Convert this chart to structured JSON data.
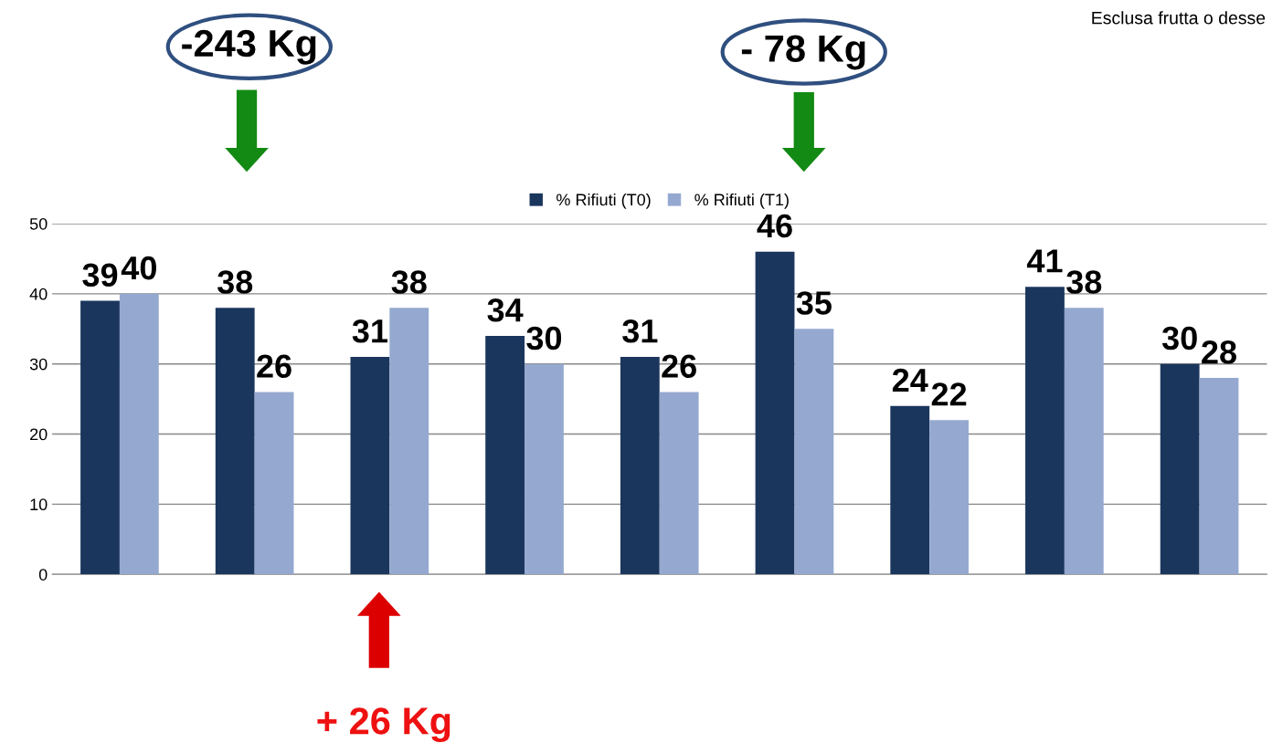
{
  "chart_data": {
    "type": "bar",
    "categories": [
      null,
      null,
      null,
      null,
      null,
      null,
      null,
      null,
      null
    ],
    "series": [
      {
        "name": "% Rifiuti (T0)",
        "color": "#1b365d",
        "values": [
          39,
          38,
          31,
          34,
          31,
          46,
          24,
          41,
          30
        ]
      },
      {
        "name": "% Rifiuti (T1)",
        "color": "#95a9d0",
        "values": [
          40,
          26,
          38,
          30,
          26,
          35,
          22,
          38,
          28
        ]
      }
    ],
    "ylim": [
      0,
      50
    ],
    "yticks": [
      0,
      10,
      20,
      30,
      40,
      50
    ],
    "grid": "y",
    "legend": "top",
    "data_labels": true,
    "tick_labels": "y",
    "annotations": [
      "-243 Kg",
      "- 78 Kg",
      "+ 26 Kg",
      "Esclusa frutta o desse"
    ]
  }
}
